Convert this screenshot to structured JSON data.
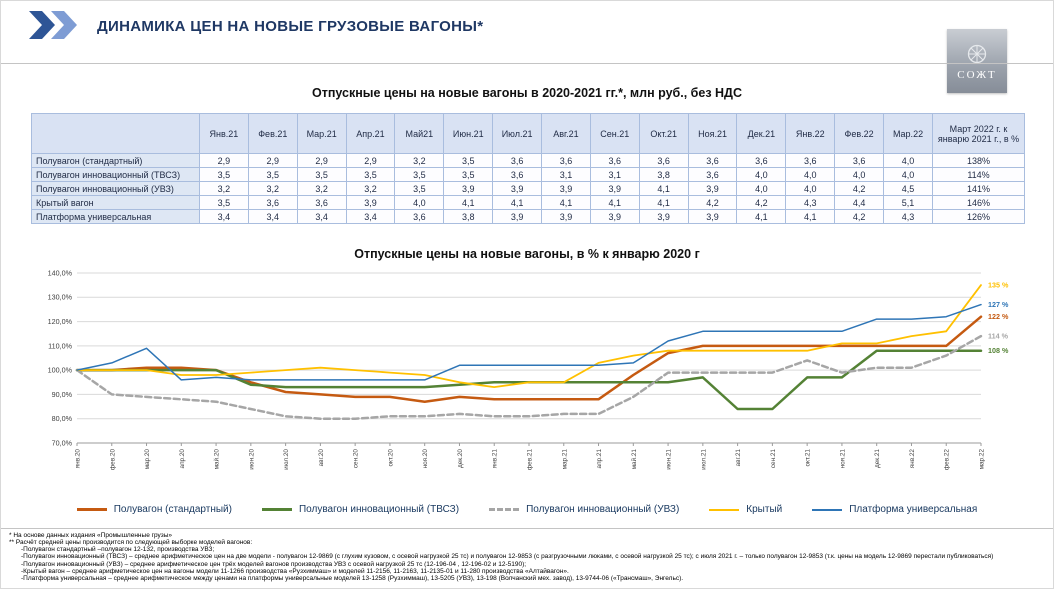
{
  "header": {
    "title": "ДИНАМИКА ЦЕН НА НОВЫЕ ГРУЗОВЫЕ ВАГОНЫ*",
    "logo_text": "СОЖТ",
    "accent_color": "#1F3864"
  },
  "table": {
    "title": "Отпускные цены на новые вагоны в 2020-2021 гг.*, млн руб., без НДС",
    "columns": [
      "",
      "Янв.21",
      "Фев.21",
      "Мар.21",
      "Апр.21",
      "Май21",
      "Июн.21",
      "Июл.21",
      "Авг.21",
      "Сен.21",
      "Окт.21",
      "Ноя.21",
      "Дек.21",
      "Янв.22",
      "Фев.22",
      "Мар.22",
      "Март 2022 г. к январю 2021 г., в %"
    ],
    "rows": [
      {
        "label": "Полувагон (стандартный)",
        "values": [
          "2,9",
          "2,9",
          "2,9",
          "2,9",
          "3,2",
          "3,5",
          "3,6",
          "3,6",
          "3,6",
          "3,6",
          "3,6",
          "3,6",
          "3,6",
          "3,6",
          "4,0",
          "138%"
        ]
      },
      {
        "label": "Полувагон инновационный (ТВСЗ)",
        "values": [
          "3,5",
          "3,5",
          "3,5",
          "3,5",
          "3,5",
          "3,5",
          "3,6",
          "3,1",
          "3,1",
          "3,8",
          "3,6",
          "4,0",
          "4,0",
          "4,0",
          "4,0",
          "114%"
        ]
      },
      {
        "label": "Полувагон инновационный (УВЗ)",
        "values": [
          "3,2",
          "3,2",
          "3,2",
          "3,2",
          "3,5",
          "3,9",
          "3,9",
          "3,9",
          "3,9",
          "4,1",
          "3,9",
          "4,0",
          "4,0",
          "4,2",
          "4,5",
          "141%"
        ]
      },
      {
        "label": "Крытый вагон",
        "values": [
          "3,5",
          "3,6",
          "3,6",
          "3,9",
          "4,0",
          "4,1",
          "4,1",
          "4,1",
          "4,1",
          "4,1",
          "4,2",
          "4,2",
          "4,3",
          "4,4",
          "5,1",
          "146%"
        ]
      },
      {
        "label": "Платформа универсальная",
        "values": [
          "3,4",
          "3,4",
          "3,4",
          "3,4",
          "3,6",
          "3,8",
          "3,9",
          "3,9",
          "3,9",
          "3,9",
          "3,9",
          "4,1",
          "4,1",
          "4,2",
          "4,3",
          "126%"
        ]
      }
    ]
  },
  "chart_data": {
    "type": "line",
    "title": "Отпускные цены на новые вагоны, в % к январю 2020 г",
    "ylim": [
      70,
      140
    ],
    "y_tick_step": 10,
    "y_tick_format": "percent-comma",
    "grid": "horizontal",
    "legend_position": "bottom",
    "categories": [
      "янв.20",
      "фев.20",
      "мар.20",
      "апр.20",
      "май.20",
      "июн.20",
      "июл.20",
      "авг.20",
      "сен.20",
      "окт.20",
      "ноя.20",
      "дек.20",
      "янв.21",
      "фев.21",
      "мар.21",
      "апр.21",
      "май.21",
      "июн.21",
      "июл.21",
      "авг.21",
      "сен.21",
      "окт.21",
      "ноя.21",
      "дек.21",
      "янв.22",
      "фев.22",
      "мар.22"
    ],
    "series": [
      {
        "key": "standard",
        "name": "Полувагон (стандартный)",
        "color": "#C55A11",
        "width": 2.5,
        "dash": false,
        "end_label": "122 %",
        "values": [
          100,
          100,
          101,
          101,
          100,
          95,
          91,
          90,
          89,
          89,
          87,
          89,
          88,
          88,
          88,
          88,
          98,
          107,
          110,
          110,
          110,
          110,
          110,
          110,
          110,
          110,
          122
        ]
      },
      {
        "key": "tvsz",
        "name": "Полувагон инновационный (ТВСЗ)",
        "color": "#548235",
        "width": 2.5,
        "dash": false,
        "end_label": "108 %",
        "values": [
          100,
          100,
          100,
          100,
          100,
          94,
          93,
          93,
          93,
          93,
          93,
          94,
          95,
          95,
          95,
          95,
          95,
          95,
          97,
          84,
          84,
          97,
          97,
          108,
          108,
          108,
          108
        ]
      },
      {
        "key": "uvz",
        "name": "Полувагон инновационный (УВЗ)",
        "color": "#A6A6A6",
        "width": 2.5,
        "dash": true,
        "end_label": "114 %",
        "values": [
          100,
          90,
          89,
          88,
          87,
          84,
          81,
          80,
          80,
          81,
          81,
          82,
          81,
          81,
          82,
          82,
          89,
          99,
          99,
          99,
          99,
          104,
          99,
          101,
          101,
          106,
          114
        ]
      },
      {
        "key": "kryty",
        "name": "Крытый",
        "color": "#FFC000",
        "width": 1.8,
        "dash": false,
        "end_label": "135 %",
        "values": [
          100,
          100,
          100,
          98,
          98,
          99,
          100,
          101,
          100,
          99,
          98,
          95,
          93,
          95,
          95,
          103,
          106,
          108,
          108,
          108,
          108,
          108,
          111,
          111,
          114,
          116,
          135
        ]
      },
      {
        "key": "platforma",
        "name": "Платформа универсальная",
        "color": "#2E75B6",
        "width": 1.5,
        "dash": false,
        "end_label": "127 %",
        "values": [
          100,
          103,
          109,
          96,
          97,
          96,
          96,
          96,
          96,
          96,
          96,
          102,
          102,
          102,
          102,
          102,
          103,
          112,
          116,
          116,
          116,
          116,
          116,
          121,
          121,
          122,
          127
        ]
      }
    ]
  },
  "footnotes": [
    {
      "text": "* На основе данных  издания «Промышленные грузы»",
      "indent": false
    },
    {
      "text": "** Расчёт средней цены производится по следующей выборке моделей вагонов:",
      "indent": false
    },
    {
      "text": "-Полувагон стандартный –полувагон 12-132, производства УВЗ;",
      "indent": true
    },
    {
      "text": "-Полувагон инновационный (ТВСЗ) – среднее арифметическое цен на две модели - полувагон 12-9869 (с глухим кузовом, с осевой нагрузкой 25 тс) и полувагон 12-9853 (с разгрузочными люками, с осевой нагрузкой 25 тс); с июля 2021 г. – только полувагон 12-9853 (т.к. цены на модель 12-9869  перестали публиковаться)",
      "indent": true
    },
    {
      "text": "-Полувагон инновационный (УВЗ) – среднее арифметическое цен трёх моделей вагонов производства УВЗ с осевой нагрузкой 25 тс (12-196-04 , 12-196-02 и 12-5190);",
      "indent": true
    },
    {
      "text": "-Крытый вагон – среднее арифметическое цен на вагоны модели 11-1266 производства «Рузхиммаш» и моделей 11-2156, 11-2163, 11-2135-01 и 11-280 производства «Алтайвагон».",
      "indent": true
    },
    {
      "text": "-Платформа универсальная – среднее арифметическое между ценами на платформы универсальные моделей 13-1258 (Рузхиммаш), 13-5205 (УВЗ), 13-198 (Волчанский мех. завод), 13-9744-06 («Трансмаш», Энгельс).",
      "indent": true
    }
  ]
}
